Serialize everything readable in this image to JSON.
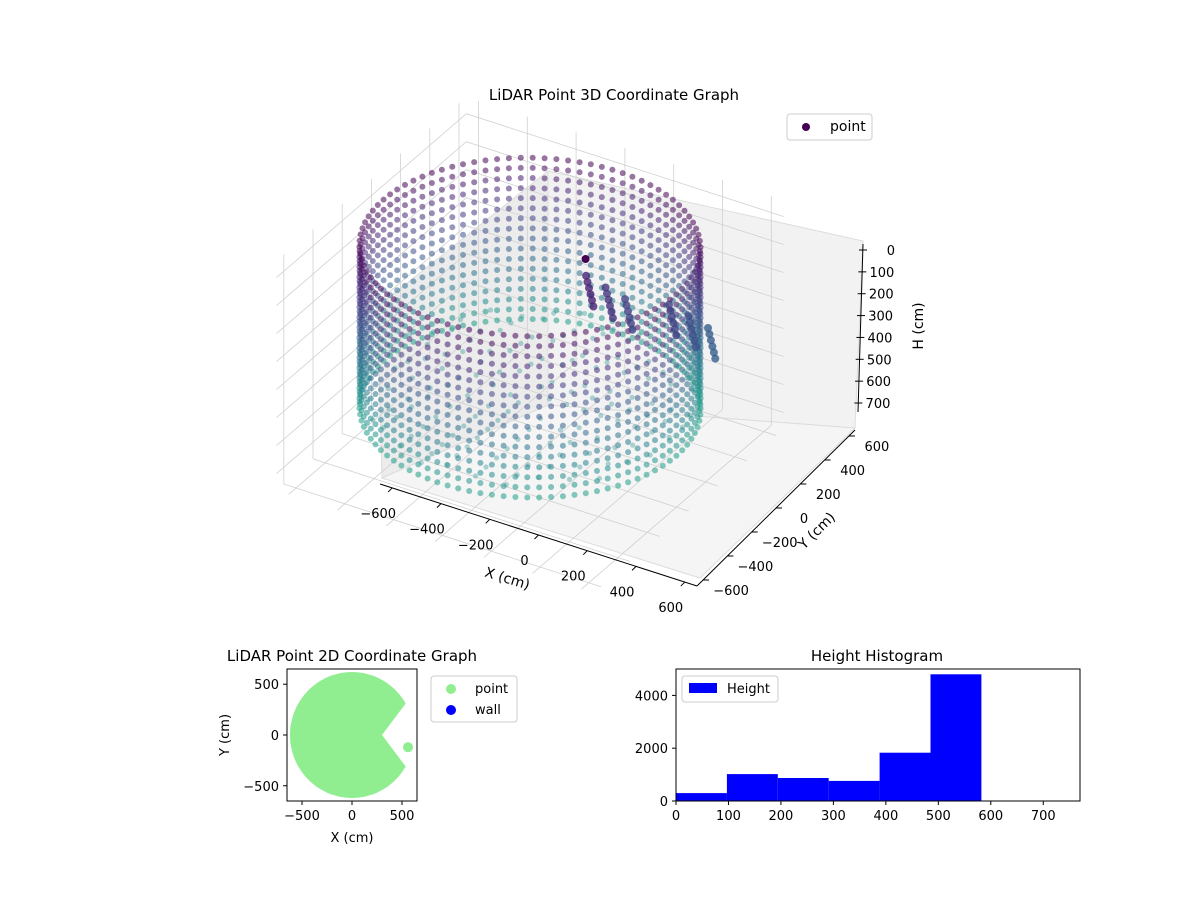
{
  "chart_data": [
    {
      "type": "scatter",
      "projection": "3d",
      "title": "LiDAR Point 3D Coordinate Graph",
      "xlabel": "X (cm)",
      "ylabel": "Y (cm)",
      "zlabel": "H (cm)",
      "xticks": [
        "−600",
        "−400",
        "−200",
        "0",
        "200",
        "400",
        "600"
      ],
      "yticks": [
        "−600",
        "−400",
        "−200",
        "0",
        "200",
        "400",
        "600"
      ],
      "zticks": [
        "0",
        "100",
        "200",
        "300",
        "400",
        "500",
        "600",
        "700"
      ],
      "xlim": [
        -650,
        650
      ],
      "ylim": [
        -650,
        650
      ],
      "zlim": [
        0,
        760
      ],
      "z_inverted": true,
      "grid": true,
      "colormap": "viridis",
      "legend": {
        "position": "top-right",
        "entries": [
          {
            "label": "point",
            "color": "#440154"
          }
        ]
      },
      "series": [
        {
          "name": "point",
          "description_shape": "cylindrical wall of points radius ~600 cm, heights 0-580 cm, plus interior clutter",
          "wall_radius": 600,
          "wall_height_range": [
            0,
            580
          ],
          "cluster_points": [
            {
              "x": 200,
              "y": 100,
              "h": 100
            },
            {
              "x": 250,
              "y": 150,
              "h": 150
            },
            {
              "x": 300,
              "y": 200,
              "h": 200
            },
            {
              "x": 450,
              "y": 250,
              "h": 200
            },
            {
              "x": 500,
              "y": 300,
              "h": 250
            },
            {
              "x": 550,
              "y": 350,
              "h": 300
            }
          ]
        }
      ]
    },
    {
      "type": "scatter",
      "title": "LiDAR Point 2D Coordinate Graph",
      "xlabel": "X (cm)",
      "ylabel": "Y (cm)",
      "xticks": [
        "−500",
        "0",
        "500"
      ],
      "yticks": [
        "500",
        "0",
        "−500"
      ],
      "xlim": [
        -650,
        650
      ],
      "ylim": [
        -650,
        650
      ],
      "legend": {
        "position": "outside-right",
        "entries": [
          {
            "label": "point",
            "color": "#90ee90"
          },
          {
            "label": "wall",
            "color": "#0000ff"
          }
        ]
      },
      "series": [
        {
          "name": "point",
          "shape": "disk",
          "center": [
            0,
            0
          ],
          "radius": 620,
          "notch_angle_deg": [
            -30,
            30
          ],
          "notch_depth": 300
        },
        {
          "name": "wall",
          "points": []
        }
      ]
    },
    {
      "type": "bar",
      "subtype": "histogram",
      "title": "Height Histogram",
      "xticks": [
        "0",
        "100",
        "200",
        "300",
        "400",
        "500",
        "600",
        "700"
      ],
      "yticks": [
        "0",
        "2000",
        "4000"
      ],
      "xlim": [
        0,
        770
      ],
      "ylim": [
        0,
        5000
      ],
      "legend": {
        "position": "top-left",
        "entries": [
          {
            "label": "Height",
            "color": "#0000ff"
          }
        ]
      },
      "bin_edges": [
        0,
        97,
        194,
        291,
        388,
        485,
        582,
        679,
        776
      ],
      "values": [
        300,
        1020,
        870,
        760,
        1830,
        4800,
        0,
        0
      ],
      "color": "#0000ff"
    }
  ]
}
